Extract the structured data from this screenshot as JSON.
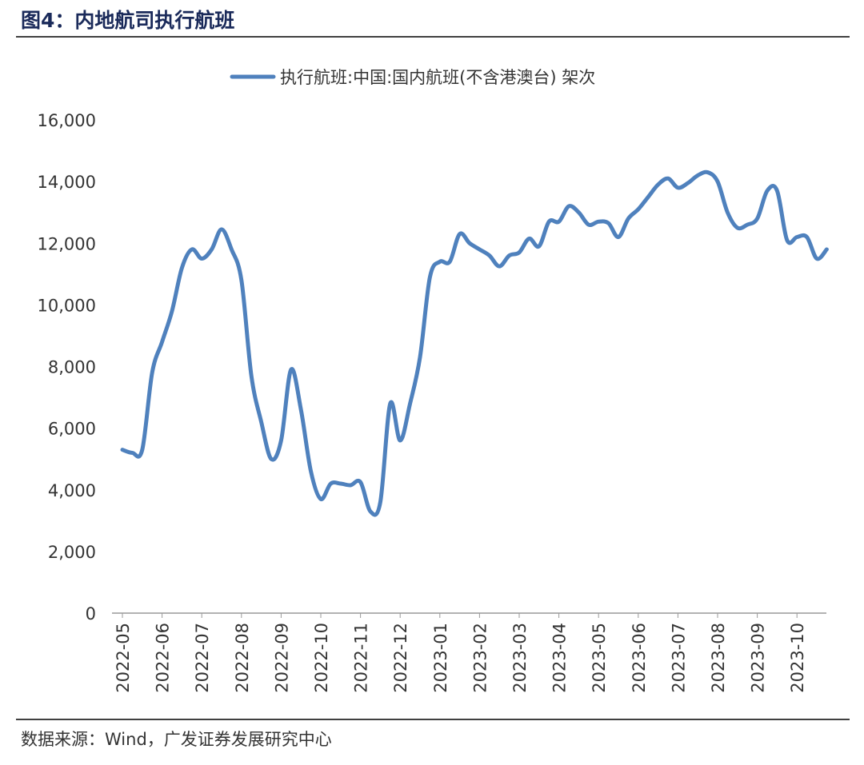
{
  "header": {
    "title": "图4：内地航司执行航班"
  },
  "chart_data": {
    "type": "line",
    "categories": [
      "2022-05",
      null,
      null,
      null,
      "2022-06",
      null,
      null,
      null,
      "2022-07",
      null,
      null,
      null,
      "2022-08",
      null,
      null,
      null,
      "2022-09",
      null,
      null,
      null,
      "2022-10",
      null,
      null,
      null,
      "2022-11",
      null,
      null,
      null,
      "2022-12",
      null,
      null,
      null,
      "2023-01",
      null,
      null,
      null,
      "2023-02",
      null,
      null,
      null,
      "2023-03",
      null,
      null,
      null,
      "2023-04",
      null,
      null,
      null,
      "2023-05",
      null,
      null,
      null,
      "2023-06",
      null,
      null,
      null,
      "2023-07",
      null,
      null,
      null,
      "2023-08",
      null,
      null,
      null,
      "2023-09",
      null,
      null,
      null,
      "2023-10",
      null,
      null,
      null
    ],
    "series": [
      {
        "name": "执行航班:中国:国内航班(不含港澳台) 架次",
        "color": "#4f81bd",
        "values": [
          5300,
          5200,
          5300,
          7800,
          8800,
          9800,
          11200,
          11800,
          11500,
          11800,
          12450,
          11800,
          10800,
          7700,
          6200,
          5000,
          5600,
          7900,
          6600,
          4600,
          3700,
          4200,
          4200,
          4150,
          4250,
          3300,
          3600,
          6800,
          5600,
          6800,
          8300,
          10900,
          11400,
          11400,
          12300,
          12000,
          11800,
          11600,
          11250,
          11600,
          11700,
          12150,
          11900,
          12700,
          12700,
          13200,
          13000,
          12600,
          12700,
          12650,
          12200,
          12800,
          13100,
          13500,
          13900,
          14100,
          13800,
          13950,
          14200,
          14300,
          14000,
          13000,
          12500,
          12600,
          12800,
          13700,
          13700,
          12100,
          12200,
          12200,
          11500,
          11800
        ]
      }
    ],
    "ylim": [
      0,
      16000
    ],
    "yticks": [
      0,
      {
        "value": 2000,
        "label": "2,000"
      },
      {
        "value": 4000,
        "label": "4,000"
      },
      {
        "value": 6000,
        "label": "6,000"
      },
      {
        "value": 8000,
        "label": "8,000"
      },
      {
        "value": 10000,
        "label": "10,000"
      },
      {
        "value": 12000,
        "label": "12,000"
      },
      {
        "value": 14000,
        "label": "14,000"
      },
      {
        "value": 16000,
        "label": "16,000"
      }
    ],
    "legend": "top"
  },
  "footer": {
    "source": "数据来源：Wind，广发证券发展研究中心"
  }
}
